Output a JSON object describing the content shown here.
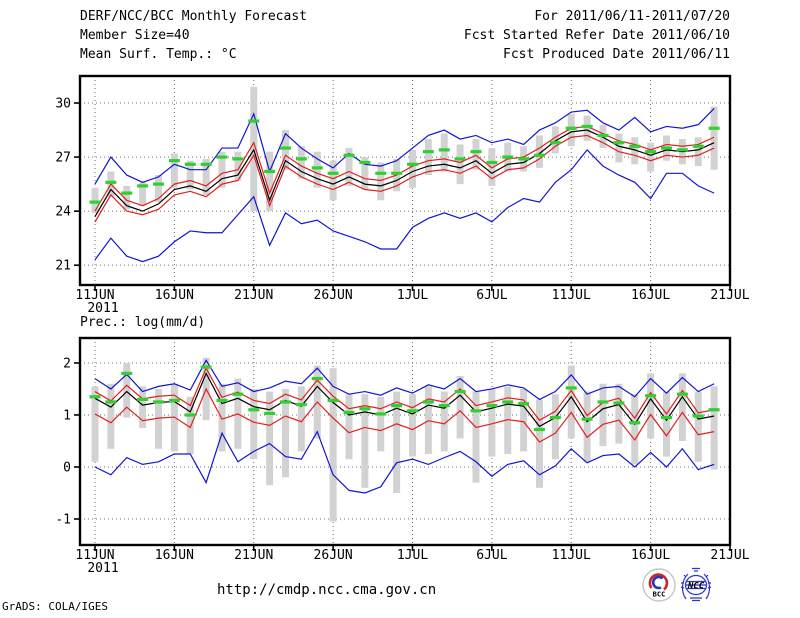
{
  "header": {
    "left": [
      "DERF/NCC/BCC Monthly Forecast",
      "Member Size=40"
    ],
    "right": [
      "For 2011/06/11-2011/07/20",
      "Fcst Started Refer Date 2011/06/10",
      "Fcst Produced Date 2011/06/11"
    ]
  },
  "footer": {
    "url": "http://cmdp.ncc.cma.gov.cn",
    "credit": "GrADS: COLA/IGES",
    "logos": [
      {
        "name": "bcc-logo",
        "label": "BCC"
      },
      {
        "name": "ncc-logo",
        "label": "NCC"
      }
    ]
  },
  "palette": {
    "envelope_blue": "#1414d2",
    "bound_red": "#e02020",
    "mean_black": "#000000",
    "climatology_green": "#30d030",
    "spread_gray": "#d2d2d2",
    "grid_gray": "#6e6e6e",
    "frame_black": "#000000"
  },
  "chart_data": [
    {
      "type": "line",
      "name": "surface-temperature-chart",
      "title": "Mean Surf. Temp.: °C",
      "x_tick_labels": [
        "11JUN",
        "16JUN",
        "21JUN",
        "26JUN",
        "1JUL",
        "6JUL",
        "11JUL",
        "16JUL",
        "21JUL"
      ],
      "year_label": "2011",
      "n_days": 40,
      "ylim": [
        19.9,
        31.5
      ],
      "yticks": [
        21,
        24,
        27,
        30
      ],
      "grid": true,
      "series": [
        {
          "name": "ensemble-spread-bar",
          "type": "bar",
          "color": "#d2d2d2",
          "low": [
            23.9,
            24.8,
            24.1,
            24.3,
            24.5,
            25.3,
            25.2,
            24.9,
            25.3,
            25.7,
            24.0,
            24.0,
            26.3,
            25.8,
            25.3,
            24.6,
            25.4,
            25.2,
            24.6,
            25.1,
            25.3,
            26.0,
            26.2,
            25.5,
            26.3,
            25.4,
            26.2,
            26.2,
            26.4,
            27.2,
            27.6,
            27.9,
            27.5,
            26.7,
            26.6,
            26.2,
            26.8,
            26.6,
            26.5,
            26.3
          ],
          "high": [
            25.3,
            26.2,
            25.4,
            25.6,
            26.0,
            27.2,
            26.8,
            26.9,
            27.3,
            27.3,
            30.9,
            27.3,
            28.5,
            27.6,
            27.3,
            26.8,
            27.5,
            27.0,
            26.7,
            26.9,
            27.4,
            28.0,
            28.3,
            27.7,
            28.0,
            27.5,
            27.8,
            27.6,
            28.2,
            28.7,
            29.4,
            29.3,
            28.8,
            28.3,
            28.1,
            27.8,
            28.2,
            28.0,
            28.1,
            29.8
          ]
        },
        {
          "name": "ensemble-max",
          "type": "line",
          "color": "#1414d2",
          "values": [
            25.5,
            27.0,
            26.0,
            25.6,
            25.9,
            26.6,
            26.3,
            26.3,
            27.5,
            27.5,
            29.4,
            26.2,
            28.3,
            27.5,
            26.9,
            26.4,
            27.2,
            26.6,
            26.5,
            26.8,
            27.5,
            28.2,
            28.5,
            28.0,
            28.2,
            27.8,
            28.0,
            27.7,
            28.5,
            28.9,
            29.5,
            29.6,
            28.9,
            28.5,
            29.2,
            28.4,
            28.7,
            28.6,
            28.8,
            29.7
          ]
        },
        {
          "name": "ensemble-min",
          "type": "line",
          "color": "#1414d2",
          "values": [
            21.3,
            22.5,
            21.5,
            21.2,
            21.5,
            22.3,
            22.9,
            22.8,
            22.8,
            23.8,
            24.8,
            22.1,
            23.9,
            23.3,
            23.5,
            22.9,
            22.6,
            22.3,
            21.9,
            21.9,
            23.1,
            23.6,
            23.9,
            23.6,
            23.9,
            23.4,
            24.2,
            24.7,
            24.5,
            25.6,
            26.3,
            27.4,
            26.5,
            26.0,
            25.6,
            24.7,
            26.1,
            26.1,
            25.4,
            25.0
          ]
        },
        {
          "name": "upper-bound-red",
          "type": "line",
          "color": "#e02020",
          "values": [
            24.0,
            25.5,
            24.6,
            24.3,
            24.7,
            25.5,
            25.7,
            25.4,
            26.1,
            26.3,
            27.8,
            25.0,
            27.1,
            26.5,
            26.1,
            25.8,
            26.2,
            25.8,
            25.7,
            26.0,
            26.5,
            26.8,
            26.9,
            26.7,
            27.1,
            26.4,
            26.9,
            27.0,
            27.5,
            28.1,
            28.6,
            28.7,
            28.3,
            27.9,
            27.7,
            27.4,
            27.7,
            27.6,
            27.7,
            28.1
          ]
        },
        {
          "name": "lower-bound-red",
          "type": "line",
          "color": "#e02020",
          "values": [
            23.4,
            24.9,
            24.0,
            23.8,
            24.1,
            24.9,
            25.1,
            24.8,
            25.5,
            25.7,
            27.1,
            24.3,
            26.5,
            25.9,
            25.5,
            25.2,
            25.6,
            25.2,
            25.1,
            25.4,
            25.9,
            26.2,
            26.3,
            26.1,
            26.5,
            25.8,
            26.3,
            26.4,
            26.9,
            27.6,
            28.1,
            28.2,
            27.8,
            27.3,
            27.1,
            26.8,
            27.1,
            27.0,
            27.1,
            27.5
          ]
        },
        {
          "name": "ensemble-mean",
          "type": "line",
          "color": "#000000",
          "values": [
            23.7,
            25.2,
            24.3,
            24.0,
            24.4,
            25.2,
            25.4,
            25.1,
            25.8,
            26.0,
            27.4,
            24.6,
            26.8,
            26.2,
            25.8,
            25.5,
            25.9,
            25.5,
            25.4,
            25.7,
            26.2,
            26.5,
            26.6,
            26.4,
            26.8,
            26.1,
            26.6,
            26.7,
            27.2,
            27.9,
            28.4,
            28.5,
            28.1,
            27.6,
            27.4,
            27.1,
            27.4,
            27.3,
            27.4,
            27.8
          ]
        },
        {
          "name": "climatology-dash",
          "type": "dash",
          "color": "#30d030",
          "values": [
            24.5,
            25.6,
            25.0,
            25.4,
            25.5,
            26.8,
            26.6,
            26.6,
            27.0,
            26.9,
            29.0,
            26.2,
            27.5,
            26.9,
            26.4,
            26.1,
            27.1,
            26.7,
            26.1,
            26.1,
            26.6,
            27.3,
            27.4,
            26.9,
            27.3,
            26.7,
            27.0,
            26.9,
            27.1,
            27.8,
            28.6,
            28.7,
            28.2,
            27.8,
            27.6,
            27.3,
            27.5,
            27.4,
            27.6,
            28.6
          ]
        }
      ]
    },
    {
      "type": "line",
      "name": "precipitation-chart",
      "title": "Prec.: log(mm/d)",
      "x_tick_labels": [
        "11JUN",
        "16JUN",
        "21JUN",
        "26JUN",
        "1JUL",
        "6JUL",
        "11JUL",
        "16JUL",
        "21JUL"
      ],
      "year_label": "2011",
      "n_days": 40,
      "ylim": [
        -1.5,
        2.48
      ],
      "yticks": [
        -1,
        0,
        1,
        2
      ],
      "grid": true,
      "series": [
        {
          "name": "ensemble-spread-bar",
          "type": "bar",
          "color": "#d2d2d2",
          "low": [
            0.1,
            0.35,
            0.95,
            0.75,
            0.35,
            0.3,
            0.25,
            0.9,
            0.3,
            0.35,
            0.15,
            -0.35,
            -0.2,
            0.3,
            0.55,
            -1.05,
            0.15,
            -0.4,
            0.3,
            -0.5,
            0.2,
            0.25,
            0.3,
            0.55,
            -0.3,
            0.2,
            0.25,
            0.3,
            -0.4,
            0.15,
            0.55,
            0.1,
            0.4,
            0.45,
            0.05,
            0.55,
            0.2,
            0.5,
            0.1,
            -0.05
          ],
          "high": [
            1.55,
            1.6,
            2.0,
            1.55,
            1.5,
            1.6,
            1.35,
            2.1,
            1.6,
            1.7,
            1.5,
            1.45,
            1.5,
            1.55,
            1.95,
            1.9,
            1.4,
            1.4,
            1.35,
            1.45,
            1.4,
            1.55,
            1.45,
            1.75,
            1.45,
            1.5,
            1.55,
            1.5,
            1.3,
            1.4,
            1.95,
            1.45,
            1.6,
            1.6,
            1.4,
            1.8,
            1.45,
            1.8,
            1.45,
            1.55
          ]
        },
        {
          "name": "ensemble-max",
          "type": "line",
          "color": "#1414d2",
          "values": [
            1.7,
            1.5,
            1.78,
            1.45,
            1.55,
            1.6,
            1.48,
            2.05,
            1.55,
            1.62,
            1.45,
            1.52,
            1.65,
            1.6,
            1.9,
            1.55,
            1.4,
            1.45,
            1.38,
            1.52,
            1.42,
            1.58,
            1.5,
            1.7,
            1.45,
            1.5,
            1.58,
            1.52,
            1.3,
            1.45,
            1.77,
            1.4,
            1.52,
            1.55,
            1.35,
            1.7,
            1.42,
            1.72,
            1.45,
            1.6
          ]
        },
        {
          "name": "ensemble-min",
          "type": "line",
          "color": "#1414d2",
          "values": [
            0.0,
            -0.15,
            0.18,
            0.05,
            0.1,
            0.25,
            0.25,
            -0.3,
            0.65,
            0.1,
            0.3,
            0.45,
            0.2,
            0.15,
            0.68,
            -0.15,
            -0.45,
            -0.5,
            -0.38,
            0.08,
            0.15,
            0.05,
            0.18,
            0.3,
            0.1,
            -0.18,
            0.05,
            0.12,
            -0.15,
            0.02,
            0.35,
            0.08,
            0.22,
            0.25,
            0.0,
            0.28,
            0.0,
            0.35,
            -0.05,
            0.05
          ]
        },
        {
          "name": "upper-bound-red",
          "type": "line",
          "color": "#e02020",
          "values": [
            1.45,
            1.27,
            1.57,
            1.31,
            1.36,
            1.38,
            1.18,
            1.9,
            1.34,
            1.44,
            1.28,
            1.22,
            1.4,
            1.29,
            1.67,
            1.36,
            1.12,
            1.18,
            1.12,
            1.25,
            1.14,
            1.31,
            1.25,
            1.5,
            1.18,
            1.25,
            1.33,
            1.29,
            0.9,
            1.07,
            1.47,
            0.99,
            1.24,
            1.32,
            0.94,
            1.43,
            1.02,
            1.47,
            1.04,
            1.1
          ]
        },
        {
          "name": "lower-bound-red",
          "type": "line",
          "color": "#e02020",
          "values": [
            1.02,
            0.85,
            1.15,
            0.89,
            0.94,
            0.96,
            0.76,
            1.5,
            0.92,
            1.02,
            0.86,
            0.8,
            0.98,
            0.87,
            1.25,
            0.94,
            0.66,
            0.76,
            0.7,
            0.83,
            0.72,
            0.89,
            0.83,
            1.08,
            0.76,
            0.83,
            0.91,
            0.87,
            0.48,
            0.65,
            1.05,
            0.57,
            0.82,
            0.9,
            0.52,
            1.01,
            0.6,
            1.05,
            0.62,
            0.68
          ]
        },
        {
          "name": "ensemble-mean",
          "type": "line",
          "color": "#000000",
          "values": [
            1.32,
            1.15,
            1.45,
            1.19,
            1.24,
            1.26,
            1.06,
            1.8,
            1.22,
            1.32,
            1.16,
            1.1,
            1.28,
            1.17,
            1.55,
            1.24,
            1.0,
            1.06,
            1.0,
            1.13,
            1.02,
            1.19,
            1.13,
            1.38,
            1.06,
            1.13,
            1.21,
            1.17,
            0.78,
            0.95,
            1.35,
            0.87,
            1.12,
            1.2,
            0.82,
            1.31,
            0.9,
            1.35,
            0.92,
            0.98
          ]
        },
        {
          "name": "climatology-dash",
          "type": "dash",
          "color": "#30d030",
          "values": [
            1.35,
            1.25,
            1.8,
            1.3,
            1.25,
            1.28,
            1.0,
            1.92,
            1.28,
            1.4,
            1.1,
            1.03,
            1.25,
            1.2,
            1.7,
            1.28,
            1.05,
            1.12,
            1.02,
            1.18,
            1.08,
            1.25,
            1.18,
            1.45,
            1.08,
            1.18,
            1.25,
            1.22,
            0.72,
            0.95,
            1.52,
            0.92,
            1.25,
            1.23,
            0.85,
            1.37,
            0.95,
            1.4,
            0.98,
            1.1
          ]
        }
      ]
    }
  ]
}
